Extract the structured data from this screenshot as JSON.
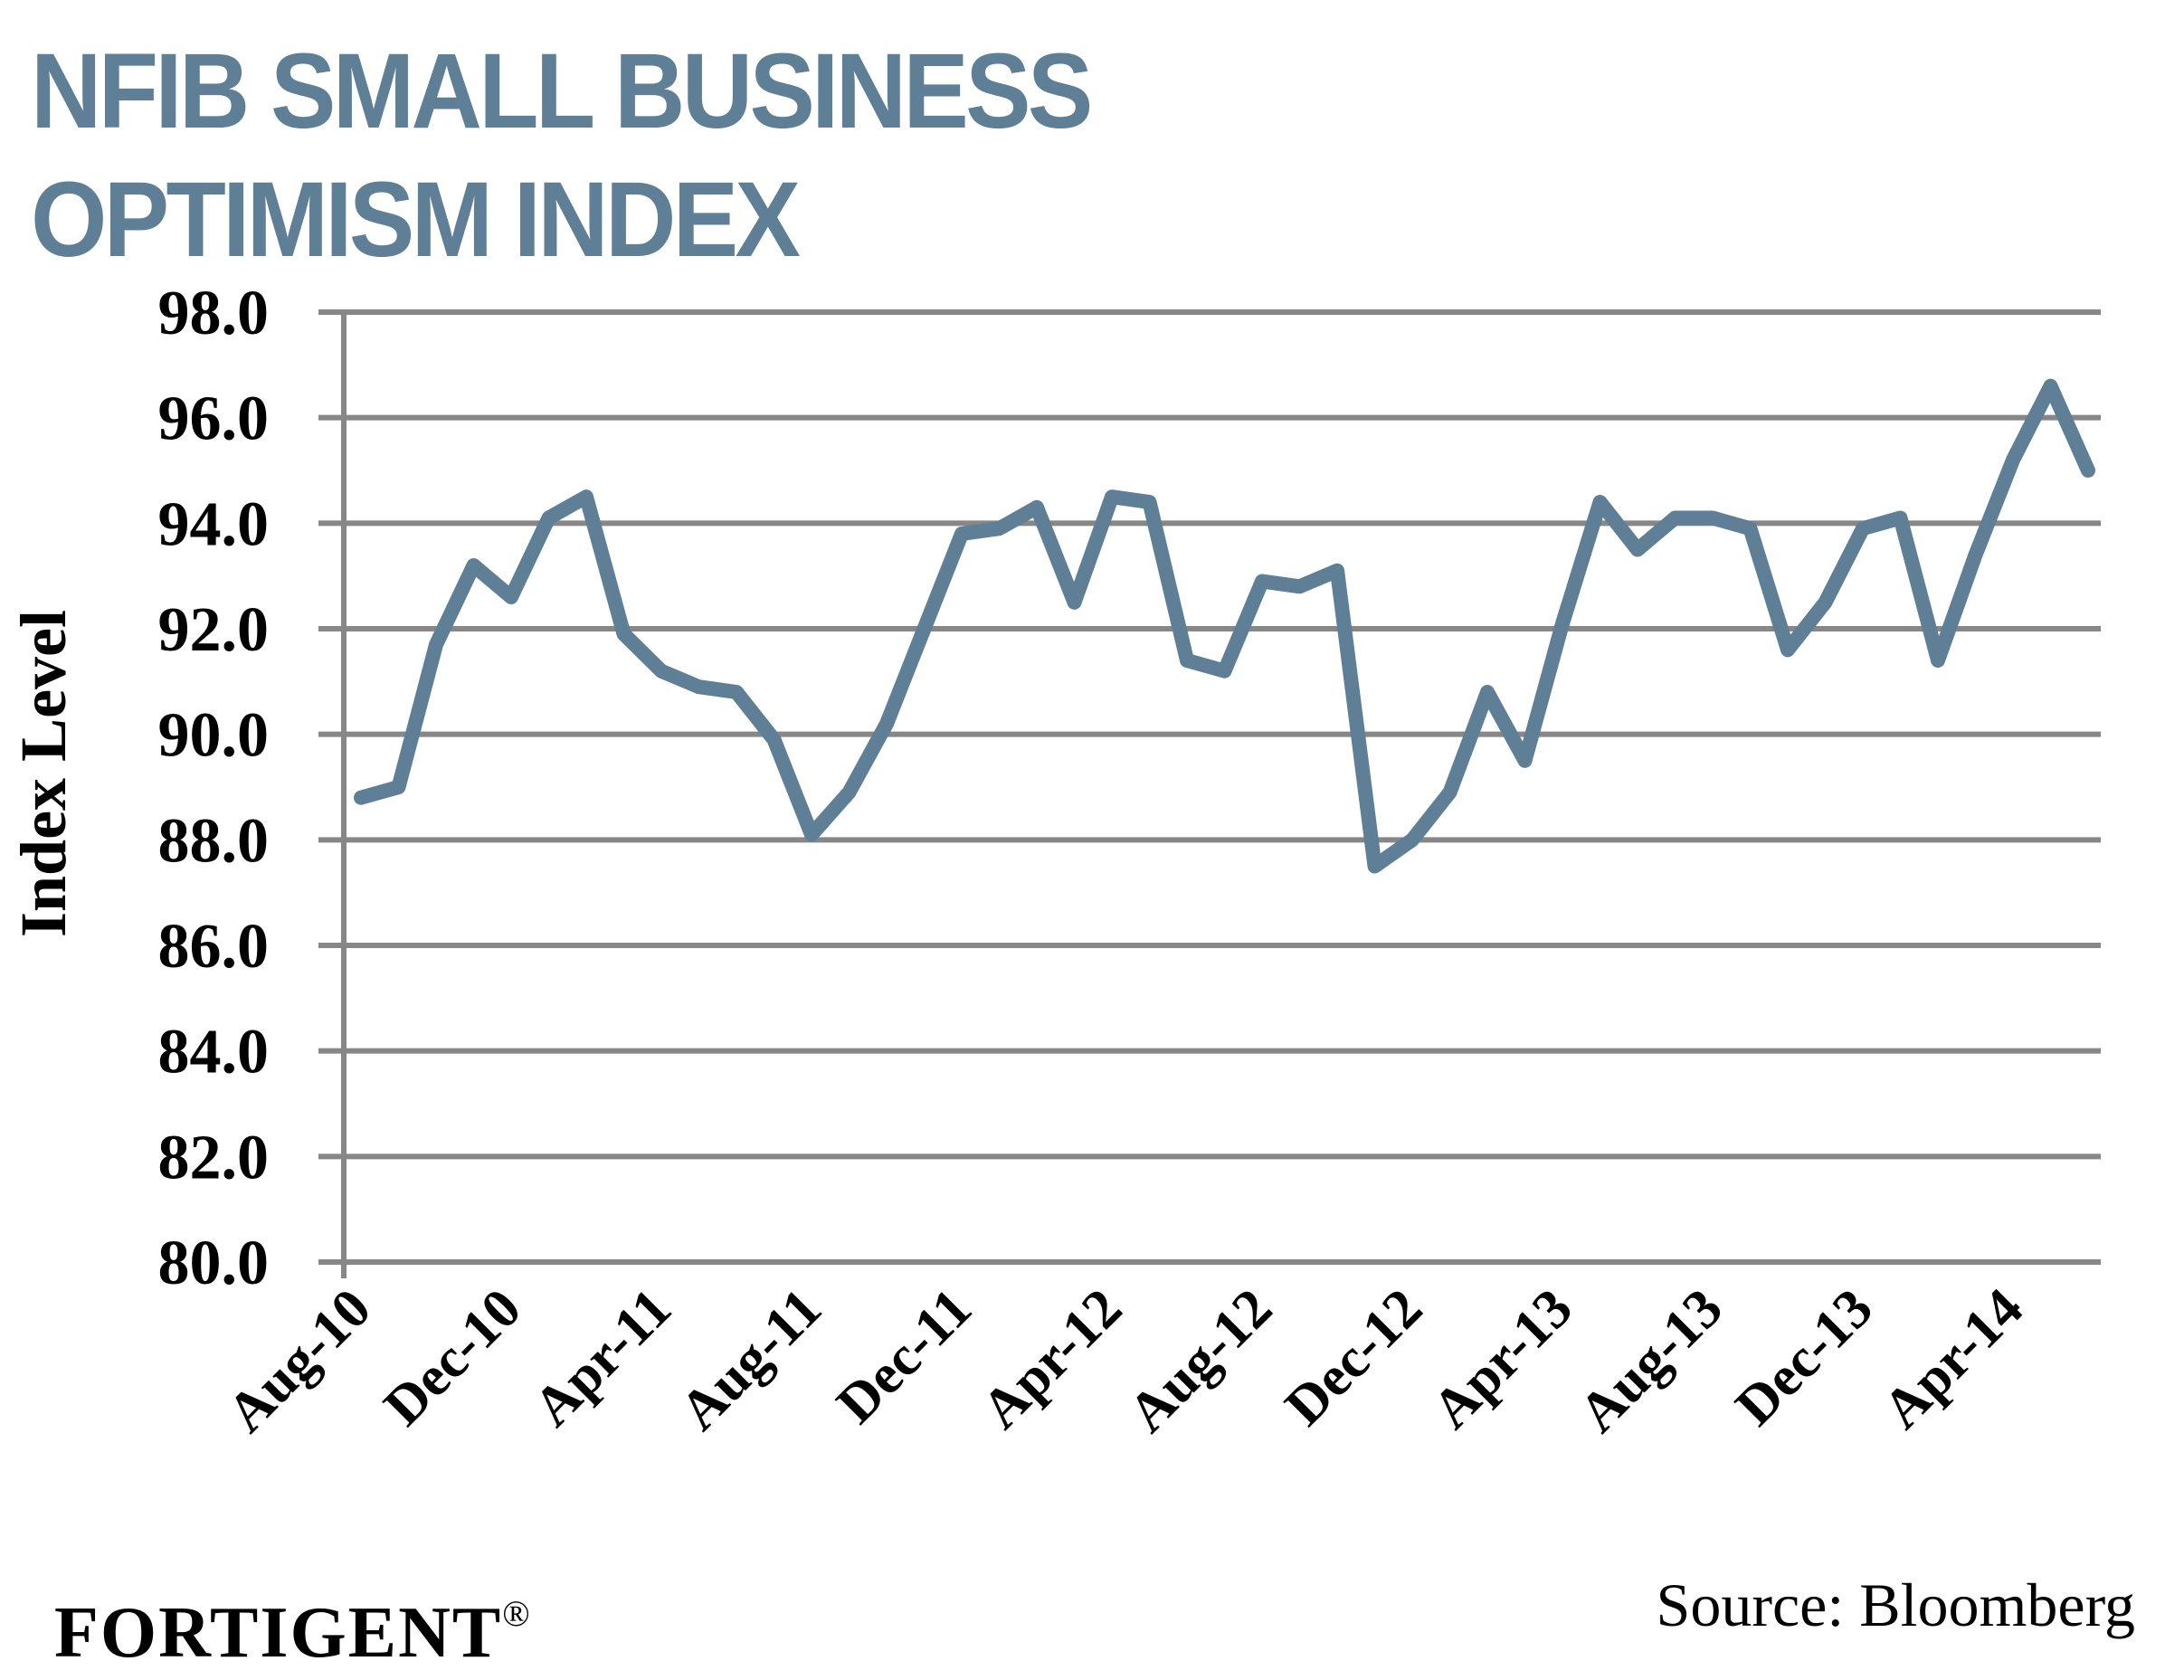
{
  "header": {
    "title_line1": "NFIB SMALL BUSINESS",
    "title_line2": "OPTIMISM INDEX"
  },
  "footer": {
    "logo": "FORTIGENT",
    "logo_mark": "®",
    "source": "Source: Bloomberg"
  },
  "colors": {
    "title": "#5e7f95",
    "line": "#5e7f95",
    "grid": "#878787"
  },
  "chart_data": {
    "type": "line",
    "title": "NFIB SMALL BUSINESS OPTIMISM INDEX",
    "xlabel": "",
    "ylabel": "Index Level",
    "ylim": [
      80,
      98
    ],
    "yticks": [
      "80.0",
      "82.0",
      "84.0",
      "86.0",
      "88.0",
      "90.0",
      "92.0",
      "94.0",
      "96.0",
      "98.0"
    ],
    "ytick_values": [
      80,
      82,
      84,
      86,
      88,
      90,
      92,
      94,
      96,
      98
    ],
    "grid": true,
    "legend": "none",
    "x": [
      "Aug-10",
      "Sep-10",
      "Oct-10",
      "Nov-10",
      "Dec-10",
      "Jan-11",
      "Feb-11",
      "Mar-11",
      "Apr-11",
      "May-11",
      "Jun-11",
      "Jul-11",
      "Aug-11",
      "Sep-11",
      "Oct-11",
      "Nov-11",
      "Dec-11",
      "Jan-12",
      "Feb-12",
      "Mar-12",
      "Apr-12",
      "May-12",
      "Jun-12",
      "Jul-12",
      "Aug-12",
      "Sep-12",
      "Oct-12",
      "Nov-12",
      "Dec-12",
      "Jan-13",
      "Feb-13",
      "Mar-13",
      "Apr-13",
      "May-13",
      "Jun-13",
      "Jul-13",
      "Aug-13",
      "Sep-13",
      "Oct-13",
      "Nov-13",
      "Dec-13",
      "Jan-14",
      "Feb-14",
      "Mar-14",
      "Apr-14",
      "May-14",
      "Jun-14"
    ],
    "xtick_labels": [
      "Aug-10",
      "Dec-10",
      "Apr-11",
      "Aug-11",
      "Dec-11",
      "Apr-12",
      "Aug-12",
      "Dec-12",
      "Apr-13",
      "Aug-13",
      "Dec-13",
      "Apr-14"
    ],
    "series": [
      {
        "name": "NFIB Small Business Optimism Index",
        "values": [
          88.8,
          89.0,
          91.7,
          93.2,
          92.6,
          94.1,
          94.5,
          91.9,
          91.2,
          90.9,
          90.8,
          89.9,
          88.1,
          88.9,
          90.2,
          92.0,
          93.8,
          93.9,
          94.3,
          92.5,
          94.5,
          94.4,
          91.4,
          91.2,
          92.9,
          92.8,
          93.1,
          87.5,
          88.0,
          88.9,
          90.8,
          89.5,
          92.1,
          94.4,
          93.5,
          94.1,
          94.1,
          93.9,
          91.6,
          92.5,
          93.9,
          94.1,
          91.4,
          93.4,
          95.2,
          96.6,
          95.0
        ]
      }
    ]
  }
}
